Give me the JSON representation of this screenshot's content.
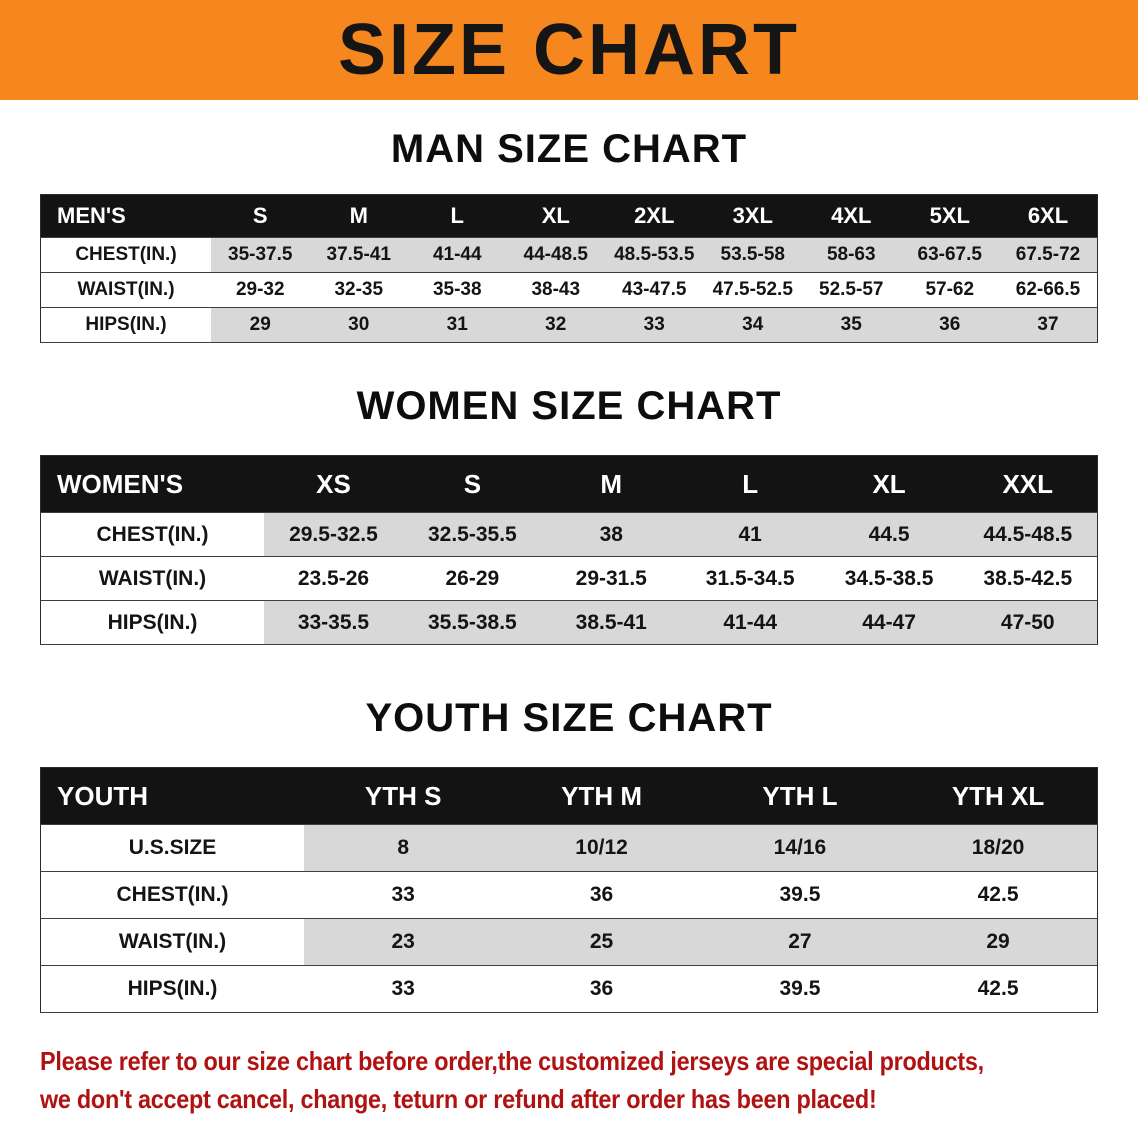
{
  "banner": {
    "title": "SIZE CHART"
  },
  "colors": {
    "banner_bg": "#f6871f",
    "header_bg": "#131313",
    "row_shade": "#d8d8d8",
    "disclaimer_color": "#b01212"
  },
  "sections": [
    {
      "heading": "MAN SIZE CHART",
      "table": {
        "header": [
          "MEN'S",
          "S",
          "M",
          "L",
          "XL",
          "2XL",
          "3XL",
          "4XL",
          "5XL",
          "6XL"
        ],
        "rows": [
          {
            "label": "CHEST(IN.)",
            "shaded": true,
            "values": [
              "35-37.5",
              "37.5-41",
              "41-44",
              "44-48.5",
              "48.5-53.5",
              "53.5-58",
              "58-63",
              "63-67.5",
              "67.5-72"
            ]
          },
          {
            "label": "WAIST(IN.)",
            "shaded": false,
            "values": [
              "29-32",
              "32-35",
              "35-38",
              "38-43",
              "43-47.5",
              "47.5-52.5",
              "52.5-57",
              "57-62",
              "62-66.5"
            ]
          },
          {
            "label": "HIPS(IN.)",
            "shaded": true,
            "values": [
              "29",
              "30",
              "31",
              "32",
              "33",
              "34",
              "35",
              "36",
              "37"
            ]
          }
        ]
      }
    },
    {
      "heading": "WOMEN SIZE CHART",
      "table": {
        "header": [
          "WOMEN'S",
          "XS",
          "S",
          "M",
          "L",
          "XL",
          "XXL"
        ],
        "rows": [
          {
            "label": "CHEST(IN.)",
            "shaded": true,
            "values": [
              "29.5-32.5",
              "32.5-35.5",
              "38",
              "41",
              "44.5",
              "44.5-48.5"
            ]
          },
          {
            "label": "WAIST(IN.)",
            "shaded": false,
            "values": [
              "23.5-26",
              "26-29",
              "29-31.5",
              "31.5-34.5",
              "34.5-38.5",
              "38.5-42.5"
            ]
          },
          {
            "label": "HIPS(IN.)",
            "shaded": true,
            "values": [
              "33-35.5",
              "35.5-38.5",
              "38.5-41",
              "41-44",
              "44-47",
              "47-50"
            ]
          }
        ]
      }
    },
    {
      "heading": "YOUTH SIZE CHART",
      "table": {
        "header": [
          "YOUTH",
          "YTH S",
          "YTH M",
          "YTH L",
          "YTH XL"
        ],
        "rows": [
          {
            "label": "U.S.SIZE",
            "shaded": true,
            "values": [
              "8",
              "10/12",
              "14/16",
              "18/20"
            ]
          },
          {
            "label": "CHEST(IN.)",
            "shaded": false,
            "values": [
              "33",
              "36",
              "39.5",
              "42.5"
            ]
          },
          {
            "label": "WAIST(IN.)",
            "shaded": true,
            "values": [
              "23",
              "25",
              "27",
              "29"
            ]
          },
          {
            "label": "HIPS(IN.)",
            "shaded": false,
            "values": [
              "33",
              "36",
              "39.5",
              "42.5"
            ]
          }
        ]
      }
    }
  ],
  "disclaimer": {
    "lines": [
      "Please refer to our size chart before order,the customized jerseys are special products,",
      "we don't accept cancel, change, teturn or refund after order has been placed!"
    ]
  }
}
